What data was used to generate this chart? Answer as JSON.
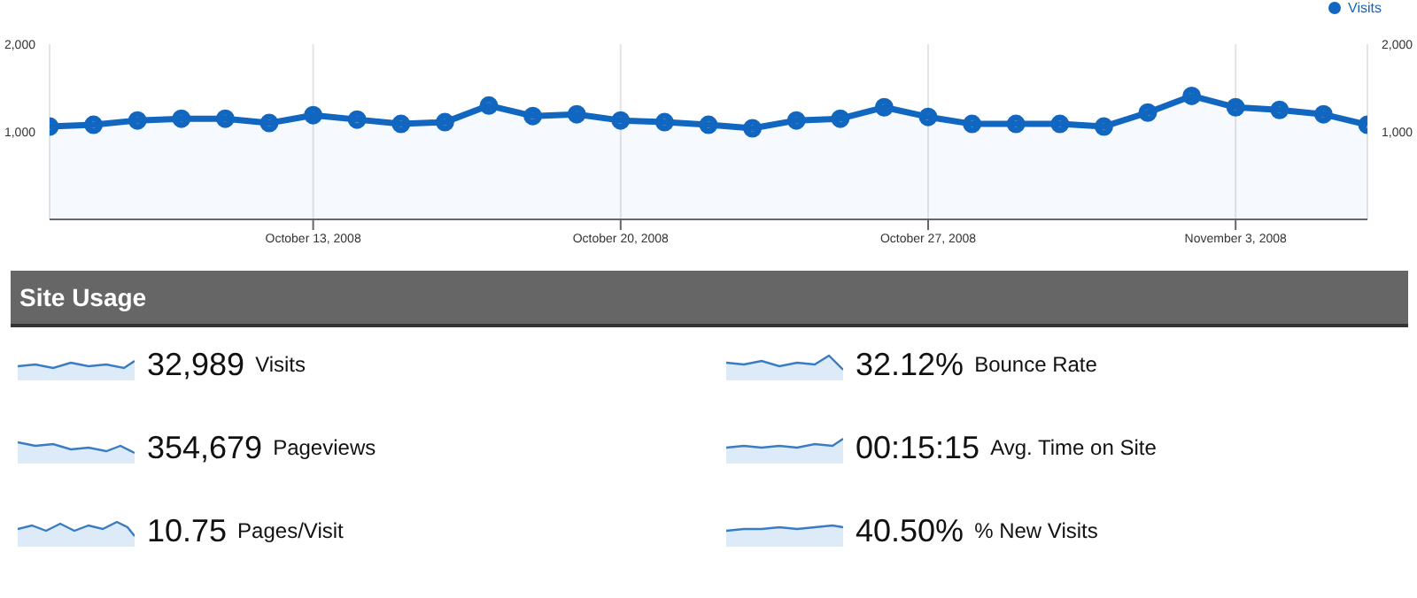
{
  "chart_data": [
    {
      "type": "area",
      "x": [
        "2008-10-07",
        "2008-10-08",
        "2008-10-09",
        "2008-10-10",
        "2008-10-11",
        "2008-10-12",
        "2008-10-13",
        "2008-10-14",
        "2008-10-15",
        "2008-10-16",
        "2008-10-17",
        "2008-10-18",
        "2008-10-19",
        "2008-10-20",
        "2008-10-21",
        "2008-10-22",
        "2008-10-23",
        "2008-10-24",
        "2008-10-25",
        "2008-10-26",
        "2008-10-27",
        "2008-10-28",
        "2008-10-29",
        "2008-10-30",
        "2008-10-31",
        "2008-11-01",
        "2008-11-02",
        "2008-11-03",
        "2008-11-04",
        "2008-11-05",
        "2008-11-06"
      ],
      "series": [
        {
          "name": "Visits",
          "color": "#1166c0",
          "values": [
            1060,
            1080,
            1130,
            1150,
            1150,
            1100,
            1190,
            1140,
            1090,
            1110,
            1300,
            1180,
            1200,
            1130,
            1110,
            1080,
            1040,
            1130,
            1150,
            1280,
            1170,
            1090,
            1090,
            1090,
            1060,
            1220,
            1410,
            1280,
            1250,
            1200,
            1080
          ]
        }
      ],
      "xlim": [
        "2008-10-07",
        "2008-11-06"
      ],
      "xticks": [
        {
          "value": "2008-10-13",
          "label": "October 13, 2008"
        },
        {
          "value": "2008-10-20",
          "label": "October 20, 2008"
        },
        {
          "value": "2008-10-27",
          "label": "October 27, 2008"
        },
        {
          "value": "2008-11-03",
          "label": "November 3, 2008"
        }
      ],
      "ylim": [
        0,
        2000
      ],
      "yticks": [
        {
          "value": 1000,
          "label": "1,000"
        },
        {
          "value": 2000,
          "label": "2,000"
        }
      ],
      "y2lim": [
        0,
        2000
      ],
      "y2ticks": [
        {
          "value": 1000,
          "label": "1,000"
        },
        {
          "value": 2000,
          "label": "2,000"
        }
      ],
      "grid": "x",
      "legend": "top right",
      "marker": "circle"
    },
    {
      "type": "other",
      "title": "Site Usage",
      "annotations": [
        "32,989",
        "Visits",
        "32.12%",
        "Bounce Rate",
        "354,679",
        "Pageviews",
        "00:15:15",
        "Avg. Time on Site",
        "10.75",
        "Pages/Visit",
        "40.50%",
        "% New Visits"
      ]
    }
  ]
}
